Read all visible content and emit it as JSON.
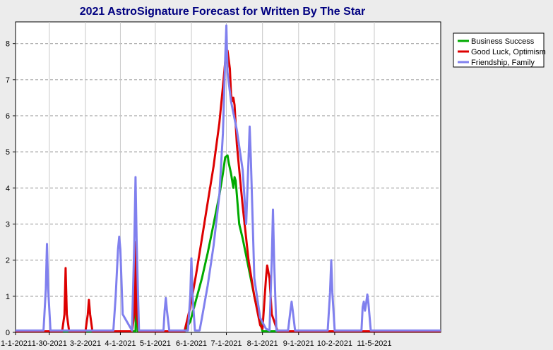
{
  "chart_data": {
    "type": "line",
    "title": "2021 AstroSignature Forecast for Written By The Star",
    "xlabel": "",
    "ylabel": "",
    "xlim": [
      0,
      365
    ],
    "ylim": [
      0,
      8.6
    ],
    "x_tick_values": [
      0,
      29,
      60,
      90,
      120,
      151,
      181,
      212,
      243,
      274,
      308
    ],
    "x_tick_labels": [
      "1-1-2021",
      "1-30-2021",
      "3-2-2021",
      "4-1-2021",
      "5-1-2021",
      "6-1-2021",
      "7-1-2021",
      "8-1-2021",
      "9-1-2021",
      "10-2-2021",
      "11-5-2021"
    ],
    "y_ticks": [
      0,
      1,
      2,
      3,
      4,
      5,
      6,
      7,
      8
    ],
    "grid": true,
    "legend_position": "top-right",
    "series": [
      {
        "name": "Business Success",
        "color": "#00aa00",
        "x": [
          0,
          100,
          103,
          104,
          105,
          108,
          110,
          145,
          150,
          155,
          160,
          165,
          170,
          175,
          178,
          180,
          182,
          183,
          185,
          187,
          188,
          189,
          190,
          192,
          195,
          200,
          205,
          210,
          212,
          218,
          220,
          365
        ],
        "values": [
          0.03,
          0.03,
          0.03,
          1.5,
          0.03,
          0.03,
          0.03,
          0.03,
          0.3,
          0.9,
          1.5,
          2.2,
          3.0,
          3.8,
          4.4,
          4.85,
          4.9,
          4.7,
          4.4,
          4.0,
          4.3,
          4.2,
          3.8,
          3.0,
          2.6,
          1.8,
          1.0,
          0.3,
          0.03,
          0.03,
          0.03,
          0.03
        ]
      },
      {
        "name": "Good Luck, Optimism",
        "color": "#dd0000",
        "x": [
          0,
          40,
          42,
          43,
          44,
          46,
          60,
          62,
          63,
          64,
          66,
          100,
          102,
          103,
          104,
          106,
          145,
          150,
          155,
          160,
          165,
          170,
          175,
          178,
          180,
          182,
          184,
          185,
          186,
          187,
          188,
          190,
          195,
          200,
          205,
          210,
          212,
          215,
          216,
          218,
          220,
          225,
          365
        ],
        "values": [
          0.03,
          0.03,
          0.5,
          1.78,
          0.5,
          0.03,
          0.03,
          0.5,
          0.9,
          0.5,
          0.03,
          0.03,
          0.5,
          2.5,
          0.5,
          0.03,
          0.03,
          0.7,
          1.6,
          2.6,
          3.6,
          4.6,
          5.8,
          6.8,
          7.5,
          7.8,
          7.3,
          6.6,
          6.4,
          6.5,
          6.3,
          5.2,
          3.5,
          2.0,
          1.0,
          0.2,
          0.1,
          1.5,
          1.85,
          1.5,
          0.5,
          0.03,
          0.03
        ]
      },
      {
        "name": "Friendship, Family",
        "color": "#8080ee",
        "x": [
          0,
          24,
          26,
          27,
          28,
          30,
          84,
          86,
          88,
          89,
          90,
          92,
          100,
          102,
          103,
          104,
          106,
          127,
          128,
          129,
          130,
          132,
          148,
          150,
          151,
          152,
          154,
          158,
          160,
          165,
          170,
          175,
          178,
          180,
          181,
          182,
          185,
          190,
          195,
          198,
          200,
          201,
          202,
          205,
          210,
          215,
          218,
          220,
          221,
          222,
          224,
          234,
          236,
          237,
          238,
          240,
          268,
          270,
          271,
          272,
          274,
          297,
          298,
          299,
          300,
          301,
          302,
          303,
          305,
          365
        ],
        "values": [
          0.05,
          0.05,
          1.2,
          2.45,
          1.2,
          0.05,
          0.05,
          1.0,
          2.3,
          2.65,
          2.3,
          0.5,
          0.05,
          2.5,
          4.3,
          2.5,
          0.05,
          0.05,
          0.6,
          0.95,
          0.6,
          0.05,
          0.05,
          1.0,
          2.05,
          1.0,
          0.05,
          0.05,
          0.4,
          1.3,
          2.4,
          3.8,
          5.5,
          7.6,
          8.5,
          7.2,
          6.4,
          5.6,
          4.5,
          3.0,
          4.8,
          5.7,
          4.8,
          1.5,
          0.4,
          0.1,
          0.05,
          2.0,
          3.4,
          2.0,
          0.05,
          0.05,
          0.6,
          0.85,
          0.6,
          0.05,
          0.05,
          1.1,
          2.0,
          1.1,
          0.05,
          0.05,
          0.7,
          0.85,
          0.6,
          0.8,
          1.05,
          0.8,
          0.05,
          0.05
        ]
      }
    ]
  }
}
